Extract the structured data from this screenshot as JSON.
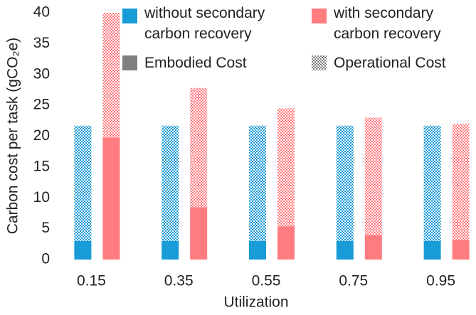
{
  "chart_data": {
    "type": "stacked_grouped_bar",
    "x_label": "Utilization",
    "y_label": "Carbon cost per task (gCO₂e)",
    "categories": [
      "0.15",
      "0.35",
      "0.55",
      "0.75",
      "0.95"
    ],
    "ylim": [
      0,
      40
    ],
    "yticks": [
      0,
      5,
      10,
      15,
      20,
      25,
      30,
      35,
      40
    ],
    "stack_names": [
      "Embodied Cost",
      "Operational Cost"
    ],
    "stack_fill": [
      "solid",
      "checkered"
    ],
    "stack_legend_color": "#7f7f7f",
    "series": [
      {
        "name": "without secondary carbon recovery",
        "color": "#189bd7",
        "stacks": [
          {
            "values": [
              3.0,
              3.0,
              3.0,
              3.0,
              3.0
            ]
          },
          {
            "values": [
              18.7,
              18.7,
              18.7,
              18.7,
              18.7
            ]
          }
        ]
      },
      {
        "name": "with secondary carbon recovery",
        "color": "#ff7c80",
        "stacks": [
          {
            "values": [
              19.8,
              8.5,
              5.4,
              4.0,
              3.2
            ]
          },
          {
            "values": [
              20.2,
              19.3,
              19.1,
              19.0,
              18.8
            ]
          }
        ]
      }
    ]
  }
}
